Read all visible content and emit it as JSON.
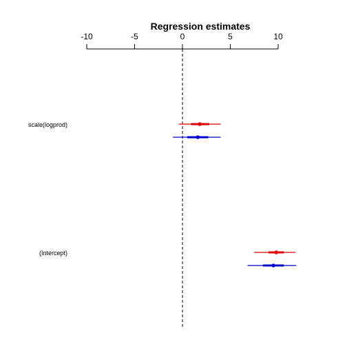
{
  "chart_data": {
    "type": "coefficient-interval",
    "title": "Regression estimates",
    "xlabel": "",
    "ylabel": "",
    "xlim": [
      -10,
      10
    ],
    "x_ticks": [
      -10,
      -5,
      0,
      5,
      10
    ],
    "x_tick_labels": [
      "-10",
      "-5",
      "0",
      "5",
      "10"
    ],
    "axis_position": "top",
    "reference_line": {
      "x": 0,
      "style": "dashed",
      "color": "#000000"
    },
    "categories": [
      "scale(logprod)",
      "(Intercept)"
    ],
    "series": [
      {
        "color": "#dd0000",
        "values": [
          1.8,
          9.8
        ],
        "inner": [
          [
            0.9,
            2.8
          ],
          [
            9.0,
            10.6
          ]
        ],
        "outer": [
          [
            -0.4,
            4.0
          ],
          [
            7.5,
            11.8
          ]
        ]
      },
      {
        "color": "#0000cc",
        "values": [
          1.6,
          9.5
        ],
        "inner": [
          [
            0.5,
            2.7
          ],
          [
            8.4,
            10.6
          ]
        ],
        "outer": [
          [
            -1.0,
            4.0
          ],
          [
            6.8,
            11.9
          ]
        ]
      }
    ],
    "grid": false,
    "legend": "none"
  }
}
